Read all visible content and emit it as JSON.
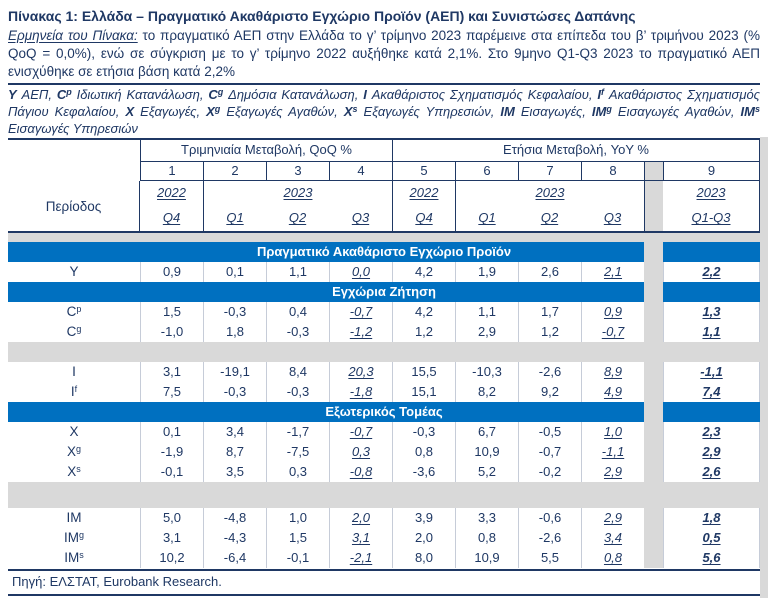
{
  "colors": {
    "navy": "#1f3864",
    "band_blue": "#0070c0",
    "gray": "#d9d9d9"
  },
  "title": "Πίνακας 1: Ελλάδα – Πραγματικό Ακαθάριστο Εγχώριο Προϊόν (ΑΕΠ) και Συνιστώσες Δαπάνης",
  "interpretation": {
    "label": "Ερμηνεία του Πίνακα:",
    "text": "το πραγματικό ΑΕΠ στην Ελλάδα το γ’ τρίμηνο 2023 παρέμεινε στα επίπεδα του β’ τριμήνου 2023 (% QoQ = 0,0%), ενώ σε σύγκριση με το γ’ τρίμηνο 2022 αυξήθηκε κατά 2,1%. Στο 9μηνο Q1-Q3 2023 το πραγματικό ΑΕΠ ενισχύθηκε σε ετήσια βάση κατά 2,2%"
  },
  "legend": {
    "items": [
      {
        "symbol": "Y",
        "sup": "",
        "label": "ΑΕΠ"
      },
      {
        "symbol": "C",
        "sup": "p",
        "label": "Ιδιωτική Κατανάλωση"
      },
      {
        "symbol": "C",
        "sup": "g",
        "label": "Δημόσια Κατανάλωση"
      },
      {
        "symbol": "I",
        "sup": "",
        "label": "Ακαθάριστος Σχηματισμός Κεφαλαίου"
      },
      {
        "symbol": "I",
        "sup": "f",
        "label": "Ακαθάριστος Σχηματισμός Πάγιου Κεφαλαίου"
      },
      {
        "symbol": "X",
        "sup": "",
        "label": "Εξαγωγές"
      },
      {
        "symbol": "X",
        "sup": "g",
        "label": "Εξαγωγές Αγαθών"
      },
      {
        "symbol": "X",
        "sup": "s",
        "label": "Εξαγωγές Υπηρεσιών"
      },
      {
        "symbol": "IM",
        "sup": "",
        "label": "Εισαγωγές"
      },
      {
        "symbol": "IM",
        "sup": "g",
        "label": "Εισαγωγές Αγαθών"
      },
      {
        "symbol": "IM",
        "sup": "s",
        "label": "Εισαγωγές Υπηρεσιών"
      }
    ]
  },
  "table": {
    "qoq_header": "Τριμηνιαία Μεταβολή, QoQ %",
    "yoy_header": "Ετήσια Μεταβολή, YoY %",
    "column_numbers": [
      "1",
      "2",
      "3",
      "4",
      "5",
      "6",
      "7",
      "8",
      "9"
    ],
    "period_label": "Περίοδος",
    "years": [
      {
        "label": "2022",
        "span": 1
      },
      {
        "label": "2023",
        "span": 3
      },
      {
        "label": "2022",
        "span": 1
      },
      {
        "label": "2023",
        "span": 3
      },
      {
        "label": "2023",
        "span": 1,
        "ytd": true
      }
    ],
    "quarters": [
      "Q4",
      "Q1",
      "Q2",
      "Q3",
      "Q4",
      "Q1",
      "Q2",
      "Q3",
      "Q1-Q3"
    ],
    "sections": [
      {
        "band": "Πραγματικό Ακαθάριστο Εγχώριο Προϊόν",
        "groups": [
          [
            {
              "label": "Y",
              "sup": "",
              "values": [
                "0,9",
                "0,1",
                "1,1",
                "0,0",
                "4,2",
                "1,9",
                "2,6",
                "2,1",
                "2,2"
              ]
            }
          ]
        ]
      },
      {
        "band": "Εγχώρια Ζήτηση",
        "groups": [
          [
            {
              "label": "C",
              "sup": "p",
              "values": [
                "1,5",
                "-0,3",
                "0,4",
                "-0,7",
                "4,2",
                "1,1",
                "1,7",
                "0,9",
                "1,3"
              ]
            },
            {
              "label": "C",
              "sup": "g",
              "values": [
                "-1,0",
                "1,8",
                "-0,3",
                "-1,2",
                "1,2",
                "2,9",
                "1,2",
                "-0,7",
                "1,1"
              ]
            }
          ],
          [
            {
              "label": "I",
              "sup": "",
              "values": [
                "3,1",
                "-19,1",
                "8,4",
                "20,3",
                "15,5",
                "-10,3",
                "-2,6",
                "8,9",
                "-1,1"
              ]
            },
            {
              "label": "I",
              "sup": "f",
              "values": [
                "7,5",
                "-0,3",
                "-0,3",
                "-1,8",
                "15,1",
                "8,2",
                "9,2",
                "4,9",
                "7,4"
              ]
            }
          ]
        ]
      },
      {
        "band": "Εξωτερικός Τομέας",
        "groups": [
          [
            {
              "label": "X",
              "sup": "",
              "values": [
                "0,1",
                "3,4",
                "-1,7",
                "-0,7",
                "-0,3",
                "6,7",
                "-0,5",
                "1,0",
                "2,3"
              ]
            },
            {
              "label": "X",
              "sup": "g",
              "values": [
                "-1,9",
                "8,7",
                "-7,5",
                "0,3",
                "0,8",
                "10,9",
                "-0,7",
                "-1,1",
                "2,9"
              ]
            },
            {
              "label": "X",
              "sup": "s",
              "values": [
                "-0,1",
                "3,5",
                "0,3",
                "-0,8",
                "-3,6",
                "5,2",
                "-0,2",
                "2,9",
                "2,6"
              ]
            }
          ],
          [
            {
              "label": "IM",
              "sup": "",
              "values": [
                "5,0",
                "-4,8",
                "1,0",
                "2,0",
                "3,9",
                "3,3",
                "-0,6",
                "2,9",
                "1,8"
              ]
            },
            {
              "label": "IM",
              "sup": "g",
              "values": [
                "3,1",
                "-4,3",
                "1,5",
                "3,1",
                "2,0",
                "0,8",
                "-2,6",
                "3,4",
                "0,5"
              ]
            },
            {
              "label": "IM",
              "sup": "s",
              "values": [
                "10,2",
                "-6,4",
                "-0,1",
                "-2,1",
                "8,0",
                "10,9",
                "5,5",
                "0,8",
                "5,6"
              ]
            }
          ]
        ]
      }
    ]
  },
  "footer": {
    "source": "Πηγή: ΕΛΣΤΑΤ, Eurobank Research."
  }
}
